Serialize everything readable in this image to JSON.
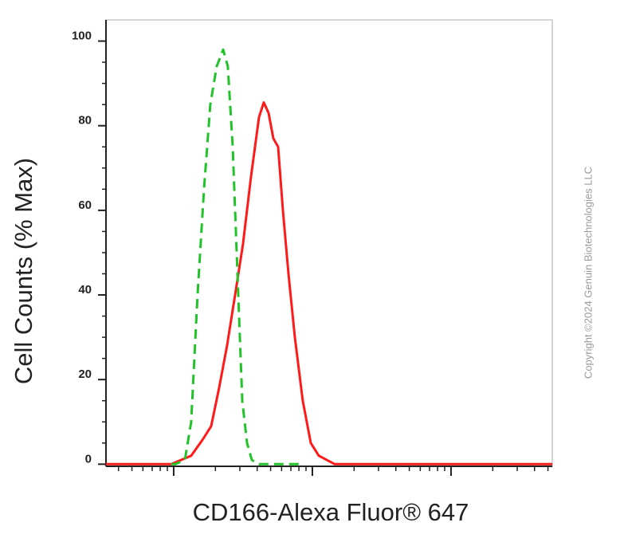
{
  "chart_data": {
    "type": "line",
    "x_label": "CD166-Alexa Fluor® 647",
    "y_label": "Cell Counts (% Max)",
    "watermark": "Copyright ©2024 Genuin Biotechnologies LLC",
    "x_scale": "log",
    "xlim": [
      0.325,
      537
    ],
    "xticks": [
      1,
      10,
      100
    ],
    "x_minor_ticks": [
      0.4,
      0.5,
      0.6,
      0.7,
      0.8,
      0.9,
      2,
      3,
      4,
      5,
      6,
      7,
      8,
      9,
      20,
      30,
      40,
      50,
      60,
      70,
      80,
      90,
      200,
      300,
      400,
      500
    ],
    "ylim": [
      -0.5,
      105
    ],
    "yticks": [
      0,
      20,
      40,
      60,
      80,
      100
    ],
    "y_minor_ticks": [
      5,
      10,
      15,
      25,
      30,
      35,
      45,
      50,
      55,
      65,
      70,
      75,
      85,
      90,
      95
    ],
    "series": [
      {
        "color": "#ff1a1a",
        "dash": false,
        "x": [
          0.325,
          0.961,
          1.338,
          1.632,
          1.863,
          2.126,
          2.427,
          2.771,
          3.162,
          3.611,
          4.121,
          4.462,
          4.831,
          5.229,
          5.662,
          6.13,
          6.725,
          7.475,
          8.53,
          9.74,
          11.12,
          14.49,
          537
        ],
        "values": [
          0,
          0,
          2,
          6,
          9,
          18,
          28,
          40,
          52,
          68,
          82,
          85.5,
          83,
          77,
          75,
          60,
          45,
          30,
          15,
          5,
          2,
          0,
          0
        ]
      },
      {
        "color": "#22c32a",
        "dash": true,
        "x": [
          0.961,
          1.027,
          1.204,
          1.338,
          1.487,
          1.654,
          1.838,
          2.043,
          2.272,
          2.459,
          2.663,
          2.883,
          3.121,
          3.379,
          3.659,
          4.121,
          8.53
        ],
        "values": [
          0,
          0,
          1,
          10,
          40,
          65,
          85,
          94,
          98,
          94,
          75,
          45,
          15,
          5,
          1,
          0,
          0
        ]
      }
    ]
  }
}
